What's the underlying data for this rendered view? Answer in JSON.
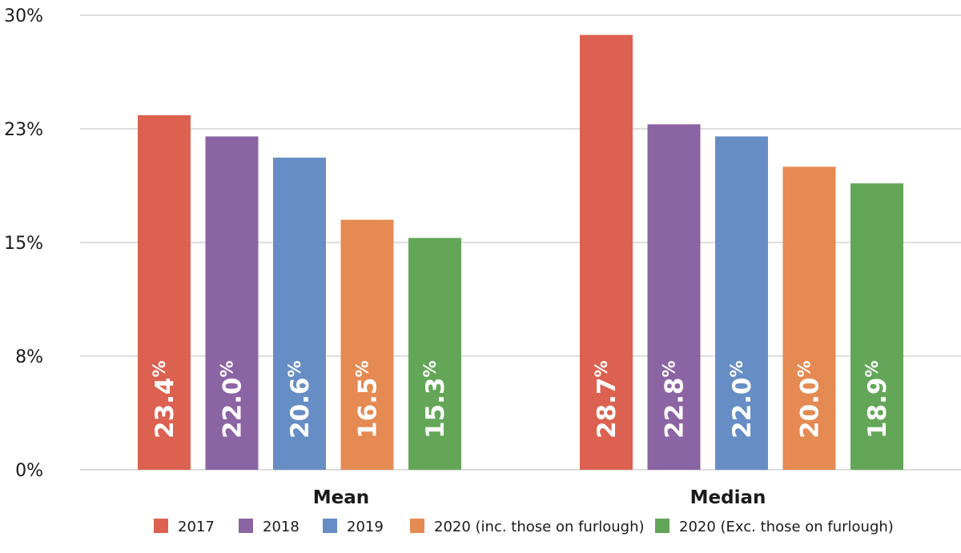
{
  "chart_data": {
    "type": "bar",
    "title": "",
    "xlabel": "",
    "ylabel": "",
    "categories": [
      "Mean",
      "Median"
    ],
    "yticks": [
      "0%",
      "8%",
      "15%",
      "23%",
      "30%"
    ],
    "ylim": [
      0,
      30
    ],
    "grid": true,
    "legend_position": "bottom",
    "series": [
      {
        "name": "2017",
        "color": "#dc6150",
        "values": [
          23.4,
          28.7
        ],
        "labels": [
          "23.4",
          "28.7"
        ]
      },
      {
        "name": "2018",
        "color": "#8b64a3",
        "values": [
          22.0,
          22.8
        ],
        "labels": [
          "22.0",
          "22.8"
        ]
      },
      {
        "name": "2019",
        "color": "#678dc5",
        "values": [
          20.6,
          22.0
        ],
        "labels": [
          "20.6",
          "22.0"
        ]
      },
      {
        "name": "2020 (inc. those on furlough)",
        "color": "#e58a52",
        "values": [
          16.5,
          20.0
        ],
        "labels": [
          "16.5",
          "20.0"
        ]
      },
      {
        "name": "2020 (Exc. those on furlough)",
        "color": "#63a658",
        "values": [
          15.3,
          18.9
        ],
        "labels": [
          "15.3",
          "18.9"
        ]
      }
    ],
    "value_suffix": "%"
  }
}
